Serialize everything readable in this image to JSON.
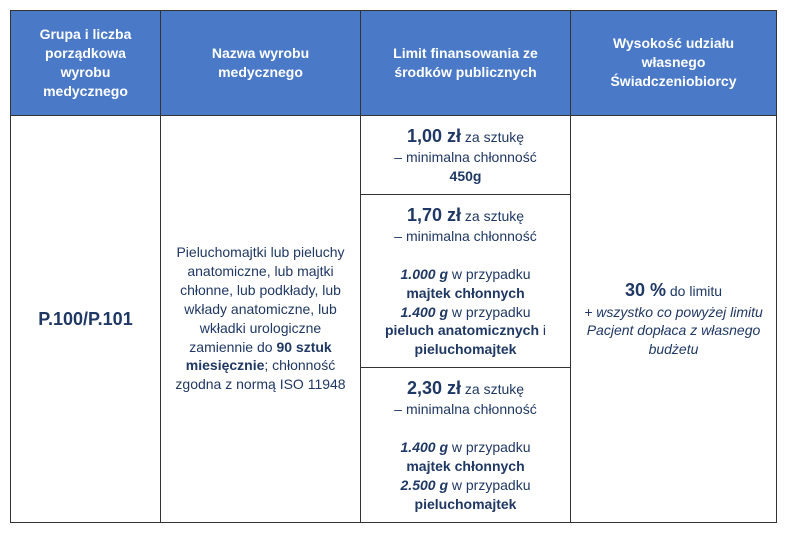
{
  "header": {
    "col1": "Grupa i liczba porządkowa wyrobu medycznego",
    "col2": "Nazwa wyrobu medycznego",
    "col3": "Limit finansowania ze środków publicznych",
    "col4": "Wysokość udziału własnego Świadczeniobiorcy"
  },
  "body": {
    "code": "P.100/P.101",
    "name_line1": "Pieluchomajtki lub pieluchy anatomiczne, lub majtki chłonne, lub podkłady, lub wkłady anatomiczne, lub wkładki urologiczne zamiennie do",
    "name_bold": "90 sztuk miesięcznie",
    "name_line2": "; chłonność zgodna z normą ISO 11948",
    "limit1": {
      "price": "1,00 zł",
      "per": "za sztukę",
      "sub": "– minimalna chłonność",
      "wt": "450g"
    },
    "limit2": {
      "price": "1,70 zł",
      "per": "za sztukę",
      "sub": "– minimalna chłonność",
      "w1": "1.000 g",
      "t1": " w przypadku ",
      "p1": "majtek chłonnych",
      "w2": "1.400 g",
      "t2": " w przypadku ",
      "p2": "pieluch anatomicznych",
      "and": " i ",
      "p3": "pieluchomajtek"
    },
    "limit3": {
      "price": "2,30 zł",
      "per": "za sztukę",
      "sub": "– minimalna chłonność",
      "w1": "1.400 g",
      "t1": " w przypadku ",
      "p1": "majtek chłonnych",
      "w2": "2.500 g",
      "t2": " w przypadku ",
      "p2": "pieluchomajtek"
    },
    "share": {
      "percent": "30 %",
      "tail": " do limitu",
      "note": "+ wszystko co powyżej limitu Pacjent dopłaca z własnego budżetu"
    }
  },
  "style": {
    "header_bg": "#4a7ac7",
    "text_color": "#1f3864"
  }
}
